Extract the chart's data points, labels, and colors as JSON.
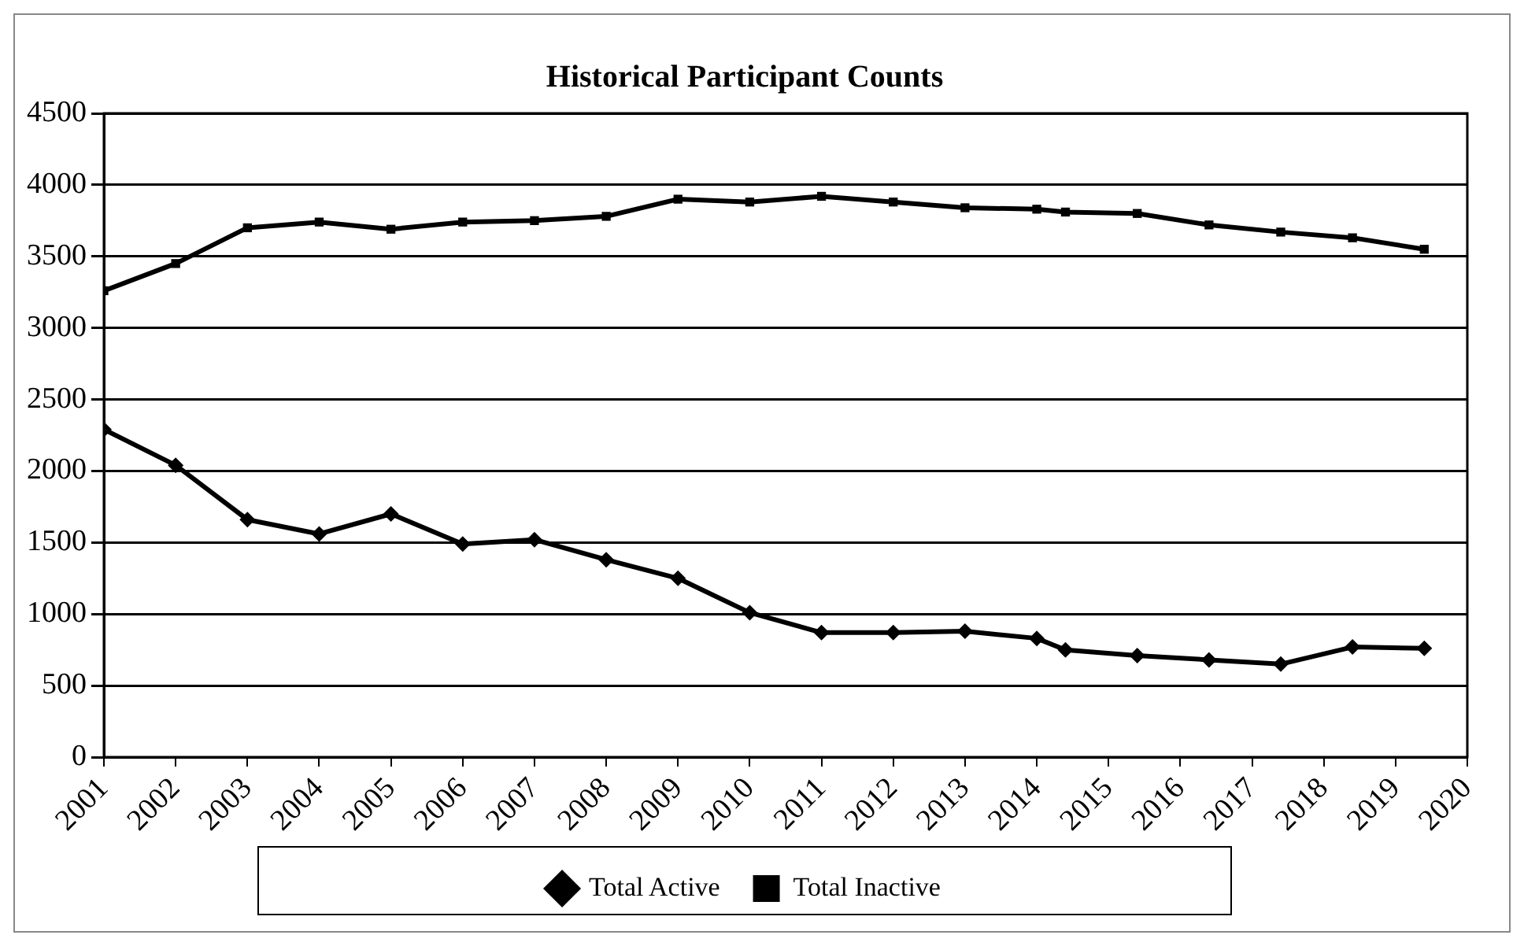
{
  "chart_data": {
    "type": "line",
    "title": "Historical Participant Counts",
    "xlim": [
      2001,
      2020
    ],
    "xticks": [
      2001,
      2002,
      2003,
      2004,
      2005,
      2006,
      2007,
      2008,
      2009,
      2010,
      2011,
      2012,
      2013,
      2014,
      2015,
      2016,
      2017,
      2018,
      2019,
      2020
    ],
    "ylim": [
      0,
      4500
    ],
    "yticks": [
      0,
      500,
      1000,
      1500,
      2000,
      2500,
      3000,
      3500,
      4000,
      4500
    ],
    "grid": "y",
    "legend": "bottom",
    "line_style": "solid",
    "series": [
      {
        "name": "Total Active",
        "color": "#000000",
        "marker": "diamond",
        "x": [
          2001,
          2002,
          2003,
          2004,
          2005,
          2006,
          2007,
          2008,
          2009,
          2010,
          2011,
          2012,
          2013,
          2014,
          2014.4,
          2015.4,
          2016.4,
          2017.4,
          2018.4,
          2019.4
        ],
        "values": [
          2290,
          2040,
          1660,
          1560,
          1700,
          1490,
          1520,
          1380,
          1250,
          1010,
          870,
          870,
          880,
          830,
          750,
          710,
          680,
          650,
          770,
          760
        ]
      },
      {
        "name": "Total Inactive",
        "color": "#000000",
        "marker": "square",
        "x": [
          2001,
          2002,
          2003,
          2004,
          2005,
          2006,
          2007,
          2008,
          2009,
          2010,
          2011,
          2012,
          2013,
          2014,
          2014.4,
          2015.4,
          2016.4,
          2017.4,
          2018.4,
          2019.4
        ],
        "values": [
          3260,
          3450,
          3700,
          3740,
          3690,
          3740,
          3750,
          3780,
          3900,
          3880,
          3920,
          3880,
          3840,
          3830,
          3810,
          3800,
          3720,
          3670,
          3630,
          3550
        ]
      }
    ]
  }
}
